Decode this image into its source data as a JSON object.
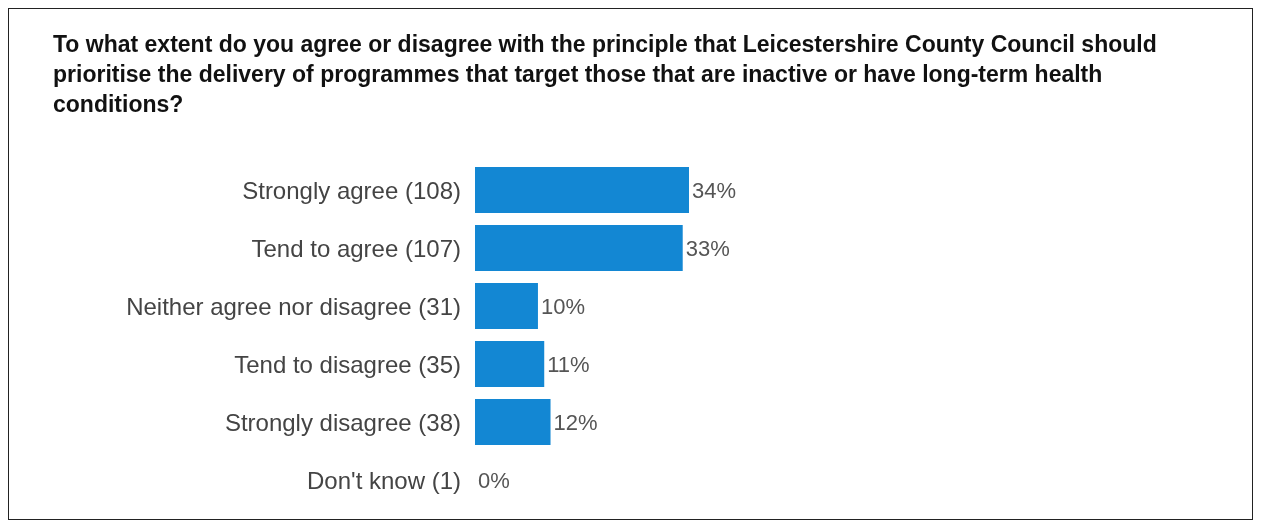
{
  "chart_data": {
    "type": "bar",
    "orientation": "horizontal",
    "title": "To what extent do you agree or disagree with the principle that Leicestershire County Council should prioritise the delivery of programmes that target those that are inactive or have long-term health conditions?",
    "categories": [
      "Strongly agree (108)",
      "Tend to agree (107)",
      "Neither agree nor disagree (31)",
      "Tend to disagree (35)",
      "Strongly disagree (38)",
      "Don't know (1)"
    ],
    "values": [
      34,
      33,
      10,
      11,
      12,
      0
    ],
    "value_labels": [
      "34%",
      "33%",
      "10%",
      "11%",
      "12%",
      "0%"
    ],
    "color": "#1387d3"
  }
}
